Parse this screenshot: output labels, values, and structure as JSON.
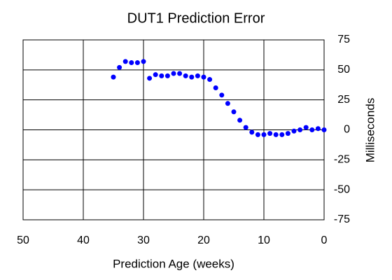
{
  "chart_data": {
    "type": "scatter",
    "title": "DUT1 Prediction Error",
    "x_label": "Prediction Age (weeks)",
    "y_label": "Milliseconds",
    "series": [
      {
        "name": "DUT1",
        "color": "#0000ff",
        "x": [
          35,
          34,
          33,
          32,
          31,
          30,
          29,
          28,
          27,
          26,
          25,
          24,
          23,
          22,
          21,
          20,
          19,
          18,
          17,
          16,
          15,
          14,
          13,
          12,
          11,
          10,
          9,
          8,
          7,
          6,
          5,
          4,
          3,
          2,
          1,
          0
        ],
        "values": [
          44,
          52,
          57,
          56,
          56,
          57,
          43,
          46,
          45,
          45,
          47,
          47,
          45,
          44,
          45,
          44,
          42,
          35,
          29,
          22,
          15,
          8,
          2,
          -2,
          -4,
          -4,
          -3,
          -4,
          -4,
          -3,
          -1,
          0,
          2,
          0,
          1,
          0
        ]
      }
    ],
    "xlim": [
      50,
      0
    ],
    "xticks": [
      50,
      40,
      30,
      20,
      10,
      0
    ],
    "ylim": [
      -75,
      75
    ],
    "yticks": [
      -75,
      -50,
      -25,
      0,
      25,
      50,
      75
    ],
    "grid": true
  }
}
